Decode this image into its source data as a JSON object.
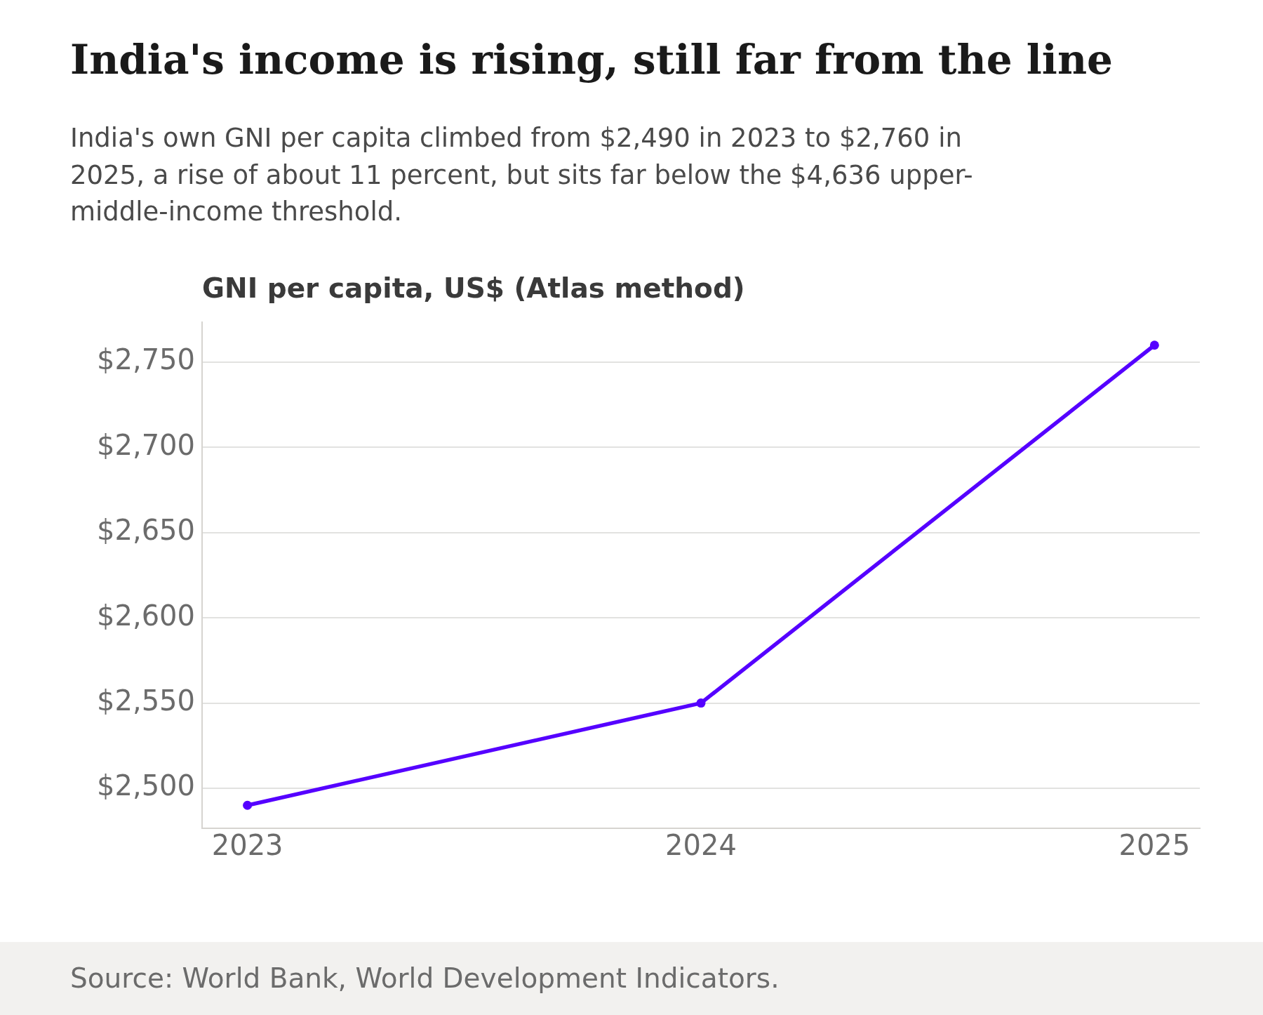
{
  "chart_data": {
    "type": "line",
    "title": "India's income is rising, still far from the line",
    "subtitle": "India's own GNI per capita climbed from $2,490 in 2023 to $2,760 in 2025, a rise of about 11 percent, but sits far below the $4,636 upper-middle-income threshold.",
    "ylabel": "GNI per capita, US$ (Atlas method)",
    "annotations": [
      "Source: World Bank, World Development Indicators."
    ],
    "x": [
      2023,
      2024,
      2025
    ],
    "series": [
      {
        "color": "#5500ff",
        "values": [
          2490,
          2550,
          2760
        ]
      }
    ],
    "xlim": [
      2022.9,
      2025.1
    ],
    "xticks": [
      2023,
      2024,
      2025
    ],
    "ylim": [
      2476.5,
      2773.5
    ],
    "yticks": [
      {
        "value": 2500,
        "label": "$2,500"
      },
      {
        "value": 2550,
        "label": "$2,550"
      },
      {
        "value": 2600,
        "label": "$2,600"
      },
      {
        "value": 2650,
        "label": "$2,650"
      },
      {
        "value": 2700,
        "label": "$2,700"
      },
      {
        "value": 2750,
        "label": "$2,750"
      }
    ],
    "grid": "y",
    "marker": "circle",
    "line_style": "solid"
  }
}
